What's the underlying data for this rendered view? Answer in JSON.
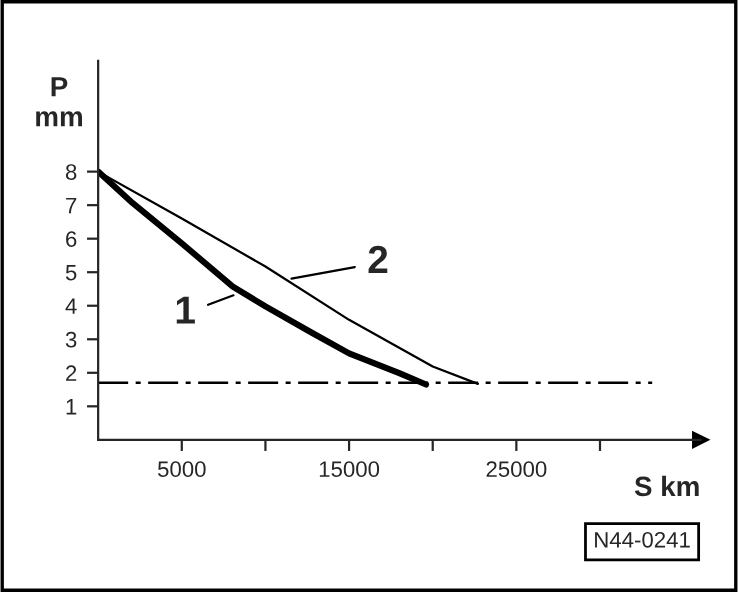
{
  "chart_data": {
    "type": "line",
    "xlabel": "S km",
    "ylabel": "P\nmm",
    "series": [
      {
        "color": "#000000",
        "x": [
          0,
          2070,
          5000,
          8050,
          10000,
          12830,
          15000,
          18000,
          19600
        ],
        "values": [
          8,
          7.06,
          5.86,
          4.57,
          3.98,
          3.18,
          2.58,
          1.99,
          1.65
        ]
      },
      {
        "color": "#000000",
        "x": [
          0,
          5000,
          10000,
          15000,
          20000,
          22700
        ],
        "values": [
          8,
          6.6,
          5.17,
          3.58,
          2.19,
          1.67
        ]
      }
    ],
    "xlim": [
      0,
      36000
    ],
    "ylim": [
      0,
      11.3
    ],
    "xticks": [
      5000,
      {
        "value": 10000,
        "label": null
      },
      15000,
      {
        "value": 20000,
        "label": null
      },
      25000,
      {
        "value": 30000,
        "label": null
      }
    ],
    "yticks": [
      1,
      2,
      3,
      4,
      5,
      6,
      7,
      8
    ],
    "ref_lines": [
      {
        "axis": "y",
        "value": 1.7,
        "line_style": "dashdot",
        "color": "#000000"
      }
    ],
    "annotations": [
      {
        "text": "1",
        "x": 8400,
        "y": 4.37
      },
      {
        "text": "2",
        "x": 11230,
        "y": 4.78
      },
      "N44-0241"
    ],
    "grid": false,
    "legend": false,
    "marker": "none",
    "line_style": "solid"
  }
}
